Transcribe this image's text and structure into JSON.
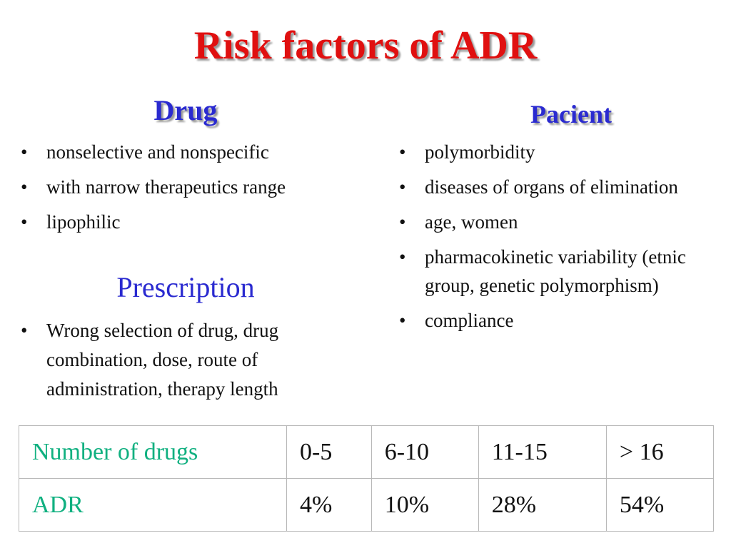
{
  "slide": {
    "title": "Risk factors of ADR"
  },
  "drug": {
    "heading": "Drug",
    "items": [
      "nonselective  and nonspecific",
      "with narrow therapeutics range",
      "lipophilic"
    ]
  },
  "prescription": {
    "heading": "Prescription",
    "items": [
      "Wrong selection of drug, drug combination, dose, route of administration, therapy length"
    ]
  },
  "pacient": {
    "heading": "Pacient",
    "items": [
      "polymorbidity",
      "diseases of organs of elimination",
      "age, women",
      "pharmacokinetic variability (etnic group, genetic polymorphism)",
      "compliance"
    ]
  },
  "table": {
    "rows": [
      {
        "label": "Number of drugs",
        "values": [
          "0-5",
          "6-10",
          "11-15",
          "> 16"
        ]
      },
      {
        "label": "ADR",
        "values": [
          "4%",
          "10%",
          "28%",
          "54%"
        ]
      }
    ]
  },
  "colors": {
    "title": "#e01010",
    "heading": "#2a2ad0",
    "table_label": "#10b080"
  }
}
